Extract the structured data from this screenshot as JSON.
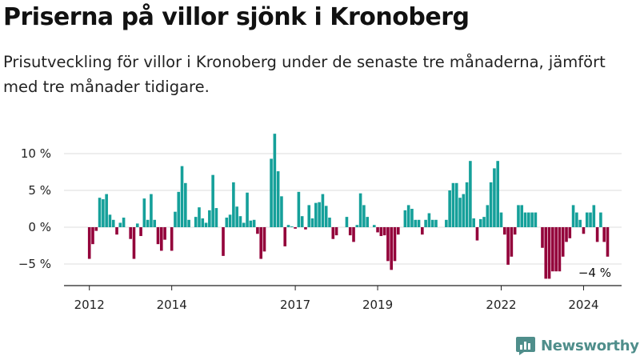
{
  "header": {
    "title": "Priserna på villor sjönk i Kronoberg",
    "subtitle": "Prisutveckling för villor i Kronoberg under de senaste tre månaderna, jämfört med tre månader tidigare."
  },
  "brand": {
    "name": "Newsworthy"
  },
  "chart_data": {
    "type": "bar",
    "title": "Priserna på villor sjönk i Kronoberg",
    "subtitle": "Prisutveckling för villor i Kronoberg under de senaste tre månaderna, jämfört med tre månader tidigare.",
    "ylim": [
      -8,
      13
    ],
    "yticks": [
      -5,
      0,
      5,
      10
    ],
    "ytick_labels": [
      "−5 %",
      "0 %",
      "5 %",
      "10 %"
    ],
    "xtick_labels": [
      "2012",
      "2014",
      "2017",
      "2019",
      "2022",
      "2024"
    ],
    "xtick_index": [
      0,
      24,
      60,
      84,
      120,
      144
    ],
    "start_index": 0,
    "grid": true,
    "positive_color": "#15a09a",
    "negative_color": "#93003a",
    "last_value_label": "−4 %",
    "values": [
      -4.3,
      -2.3,
      -0.5,
      4.0,
      3.8,
      4.5,
      1.7,
      1.0,
      -1.0,
      0.6,
      1.3,
      0.0,
      -1.6,
      -4.3,
      0.5,
      -1.2,
      3.9,
      1.0,
      4.5,
      1.0,
      -2.3,
      -3.2,
      -1.7,
      0.0,
      -3.2,
      2.1,
      4.8,
      8.3,
      6.0,
      1.0,
      0.0,
      1.4,
      2.7,
      1.2,
      0.6,
      2.3,
      7.1,
      2.6,
      0.0,
      -3.9,
      1.3,
      1.7,
      6.1,
      2.8,
      1.5,
      0.6,
      4.7,
      0.9,
      1.0,
      -0.9,
      -4.3,
      -3.3,
      0.0,
      9.3,
      12.7,
      7.6,
      4.2,
      -2.6,
      0.3,
      0.1,
      -0.2,
      4.8,
      1.5,
      -0.3,
      3.0,
      1.2,
      3.3,
      3.4,
      4.5,
      2.9,
      1.3,
      -1.6,
      -1.1,
      0.0,
      0.0,
      1.4,
      -1.1,
      -2.0,
      0.3,
      4.6,
      3.0,
      1.4,
      0.0,
      0.3,
      -0.7,
      -1.2,
      -1.1,
      -4.6,
      -5.8,
      -4.6,
      -1.0,
      0.0,
      2.3,
      3.0,
      2.5,
      1.0,
      1.0,
      -1.0,
      1.0,
      1.9,
      1.0,
      1.0,
      0.0,
      0.0,
      1.0,
      5.0,
      6.0,
      6.0,
      4.0,
      4.5,
      6.1,
      9.0,
      1.2,
      -1.8,
      1.1,
      1.4,
      3.0,
      6.1,
      8.0,
      9.0,
      2.0,
      -1.0,
      -5.1,
      -4.0,
      -1.0,
      3.0,
      3.0,
      2.0,
      2.0,
      2.0,
      2.0,
      0.0,
      -2.8,
      -7.0,
      -7.0,
      -6.0,
      -6.0,
      -6.0,
      -4.0,
      -2.0,
      -1.5,
      3.0,
      2.0,
      1.0,
      -0.9,
      2.0,
      2.0,
      3.0,
      -2.0,
      2.0,
      -2.0,
      -4.0
    ]
  }
}
